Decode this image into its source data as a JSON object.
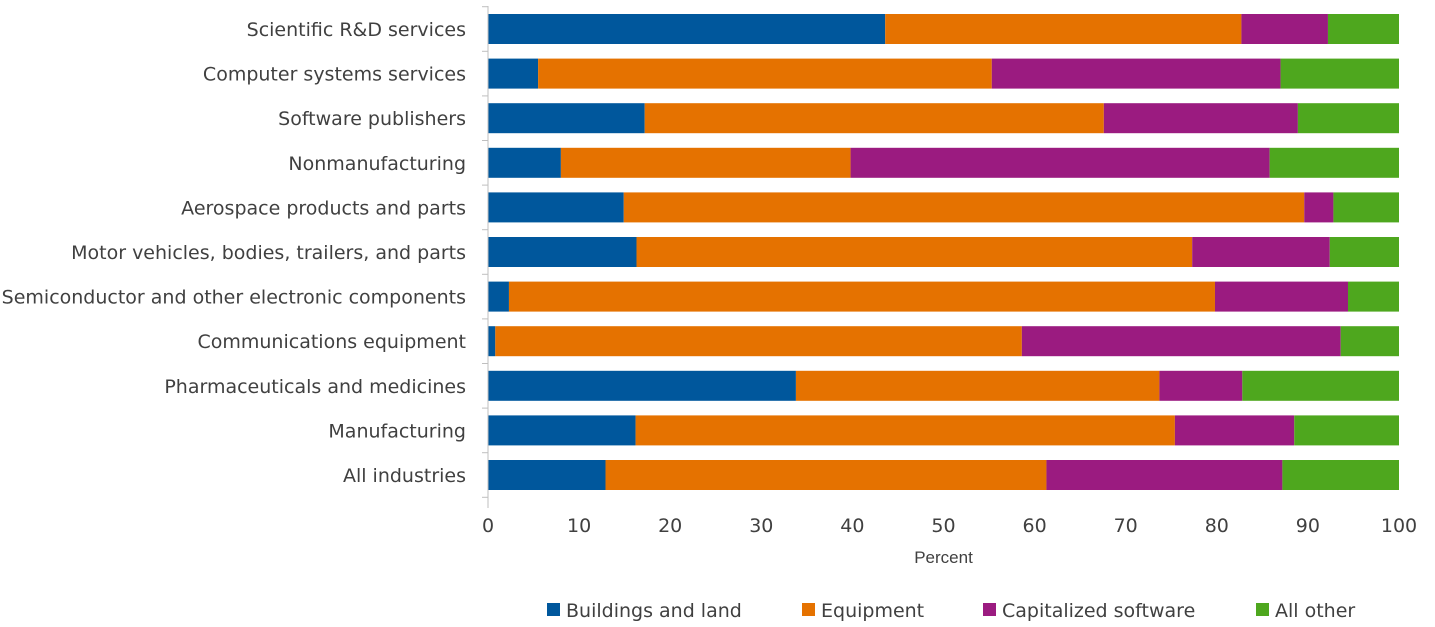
{
  "chart_data": {
    "type": "bar",
    "orientation": "horizontal",
    "stacked": true,
    "categories": [
      "Scientific R&D services",
      "Computer systems services",
      "Software publishers",
      "Nonmanufacturing",
      "Aerospace products and parts",
      "Motor vehicles, bodies, trailers, and parts",
      "Semiconductor and other electronic components",
      "Communications equipment",
      "Pharmaceuticals and medicines",
      "Manufacturing",
      "All industries"
    ],
    "series": [
      {
        "name": "Buildings and land",
        "color": "#00579c",
        "values": [
          43.6,
          5.5,
          17.2,
          8.0,
          14.9,
          16.3,
          2.3,
          0.8,
          33.8,
          16.2,
          12.9
        ]
      },
      {
        "name": "Equipment",
        "color": "#e57200",
        "values": [
          39.1,
          49.8,
          50.4,
          31.8,
          74.7,
          61.0,
          77.5,
          57.8,
          39.9,
          59.2,
          48.4
        ]
      },
      {
        "name": "Capitalized software",
        "color": "#9b1b80",
        "values": [
          9.5,
          31.7,
          21.3,
          46.0,
          3.2,
          15.1,
          14.6,
          35.0,
          9.1,
          13.1,
          25.9
        ]
      },
      {
        "name": "All other",
        "color": "#4ea71e",
        "values": [
          7.8,
          13.0,
          11.1,
          14.2,
          7.2,
          7.6,
          5.6,
          6.4,
          17.2,
          11.5,
          12.8
        ]
      }
    ],
    "x_ticks": [
      "0",
      "10",
      "20",
      "30",
      "40",
      "50",
      "60",
      "70",
      "80",
      "90",
      "100"
    ],
    "xlim": [
      0,
      100
    ],
    "xlabel": "Percent",
    "ylabel": "",
    "title": "",
    "grid": false,
    "legend_position": "bottom"
  }
}
